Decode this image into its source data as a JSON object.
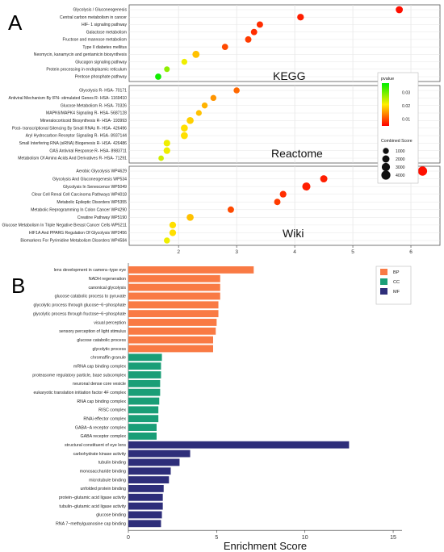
{
  "panels": {
    "a": "A",
    "b": "B"
  },
  "chart_data": [
    {
      "type": "scatter",
      "xlim": [
        1.15,
        6.5
      ],
      "xticks": [
        2,
        3,
        4,
        5,
        6
      ],
      "facets": [
        {
          "name": "KEGG",
          "terms": [
            {
              "label": "Glycolysis / Gluconeogenesis",
              "x": 5.8,
              "p": 0.006,
              "score": 1900
            },
            {
              "label": "Central carbon metabolism in cancer",
              "x": 4.1,
              "p": 0.007,
              "score": 1500
            },
            {
              "label": "HIF- 1 signaling pathway",
              "x": 3.4,
              "p": 0.008,
              "score": 1300
            },
            {
              "label": "Galactose metabolism",
              "x": 3.3,
              "p": 0.008,
              "score": 1300
            },
            {
              "label": "Fructose and mannose metabolism",
              "x": 3.2,
              "p": 0.009,
              "score": 1300
            },
            {
              "label": "Type II diabetes mellitus",
              "x": 2.8,
              "p": 0.01,
              "score": 1200
            },
            {
              "label": "Neomycin, kanamycin and gentamicin biosynthesis",
              "x": 2.3,
              "p": 0.018,
              "score": 1900
            },
            {
              "label": "Glucagon signaling pathway",
              "x": 2.1,
              "p": 0.022,
              "score": 1000
            },
            {
              "label": "Protein processing in endoplasmic reticulum",
              "x": 1.8,
              "p": 0.028,
              "score": 800
            },
            {
              "label": "Pentose phosphate pathway",
              "x": 1.65,
              "p": 0.036,
              "score": 1200
            }
          ]
        },
        {
          "name": "Reactome",
          "terms": [
            {
              "label": "Glycolysis R- HSA- 70171",
              "x": 3.0,
              "p": 0.012,
              "score": 1100
            },
            {
              "label": "Antiviral Mechanism By IFN- stimulated Genes R- HSA- 1169410",
              "x": 2.6,
              "p": 0.015,
              "score": 1000
            },
            {
              "label": "Glucose Metabolism R- HSA- 70326",
              "x": 2.45,
              "p": 0.017,
              "score": 1000
            },
            {
              "label": "MAPK6/MAPK4 Signaling R- HSA- 5687128",
              "x": 2.35,
              "p": 0.018,
              "score": 900
            },
            {
              "label": "Mineralocorticoid Biosynthesis R- HSA- 193993",
              "x": 2.2,
              "p": 0.019,
              "score": 1800
            },
            {
              "label": "Post- transcriptional Silencing By Small RNAs R- HSA- 426496",
              "x": 2.1,
              "p": 0.02,
              "score": 1800
            },
            {
              "label": "Aryl Hydrocarbon Receptor Signaling R- HSA- 8937144",
              "x": 2.1,
              "p": 0.02,
              "score": 1800
            },
            {
              "label": "Small Interfering RNA (siRNA) Biogenesis R- HSA- 426486",
              "x": 1.8,
              "p": 0.022,
              "score": 1500
            },
            {
              "label": "OAS Antiviral Response R- HSA- 8983711",
              "x": 1.8,
              "p": 0.022,
              "score": 1500
            },
            {
              "label": "Metabolism Of Amino Acids And Derivatives R- HSA- 71291",
              "x": 1.7,
              "p": 0.024,
              "score": 700
            }
          ]
        },
        {
          "name": "Wiki",
          "terms": [
            {
              "label": "Aerobic Glycolysis WP4629",
              "x": 6.2,
              "p": 0.006,
              "score": 4200
            },
            {
              "label": "Glycolysis And Gluconeogenesis WP534",
              "x": 4.5,
              "p": 0.007,
              "score": 2000
            },
            {
              "label": "Glycolysis In Senescence WP5049",
              "x": 4.2,
              "p": 0.007,
              "score": 2900
            },
            {
              "label": "Clear Cell Renal Cell Carcinoma Pathways WP4018",
              "x": 3.8,
              "p": 0.008,
              "score": 1500
            },
            {
              "label": "Metabolic Epileptic Disorders WP5355",
              "x": 3.7,
              "p": 0.009,
              "score": 1300
            },
            {
              "label": "Metabolic Reprogramming In Colon Cancer WP4290",
              "x": 2.9,
              "p": 0.01,
              "score": 1300
            },
            {
              "label": "Creatine Pathway WP5190",
              "x": 2.2,
              "p": 0.018,
              "score": 1800
            },
            {
              "label": "Glucose Metabolism In Triple Negative Breast Cancer Cells WP5211",
              "x": 1.9,
              "p": 0.02,
              "score": 1500
            },
            {
              "label": "HIF1A And PPARG Regulation Of Glycolysis WP2456",
              "x": 1.9,
              "p": 0.02,
              "score": 1500
            },
            {
              "label": "Biomarkers For Pyrimidine Metabolism Disorders WP4584",
              "x": 1.8,
              "p": 0.022,
              "score": 1100
            }
          ]
        }
      ],
      "legend": {
        "pvalue_title": "pvalue",
        "pvalue_ticks": [
          0.03,
          0.02,
          0.01
        ],
        "pvalue_colors": [
          "#00ee00",
          "#ffee00",
          "#ff0000"
        ],
        "pvalue_range": [
          0.005,
          0.037
        ],
        "size_title": "Combined Score",
        "size_values": [
          1000,
          2000,
          3000,
          4000
        ],
        "placement": "right"
      }
    },
    {
      "type": "bar",
      "orientation": "horizontal",
      "xlabel": "Enrichment Score",
      "xlim": [
        0,
        15.5
      ],
      "xticks": [
        0,
        5,
        10,
        15
      ],
      "groups": [
        {
          "name": "BP",
          "color": "#f97a44",
          "terms": [
            {
              "label": "lens development in camera−type eye",
              "value": 7.1
            },
            {
              "label": "NADH regeneration",
              "value": 5.2
            },
            {
              "label": "canonical glycolysis",
              "value": 5.2
            },
            {
              "label": "glucose catabolic process to pyruvate",
              "value": 5.2
            },
            {
              "label": "glycolytic process through glucose−6−phosphate",
              "value": 5.1
            },
            {
              "label": "glycolytic process through fructose−6−phosphate",
              "value": 5.1
            },
            {
              "label": "visual perception",
              "value": 5.0
            },
            {
              "label": "sensory perception of light stimulus",
              "value": 4.95
            },
            {
              "label": "glucose catabolic process",
              "value": 4.8
            },
            {
              "label": "glycolytic process",
              "value": 4.8
            }
          ]
        },
        {
          "name": "CC",
          "color": "#1a9e77",
          "terms": [
            {
              "label": "chromaffin granule",
              "value": 1.9
            },
            {
              "label": "mRNA cap binding complex",
              "value": 1.85
            },
            {
              "label": "proteasome regulatory particle, base subcomplex",
              "value": 1.85
            },
            {
              "label": "neuronal dense core vesicle",
              "value": 1.8
            },
            {
              "label": "eukaryotic translation initiation factor 4F complex",
              "value": 1.8
            },
            {
              "label": "RNA cap binding complex",
              "value": 1.75
            },
            {
              "label": "RISC complex",
              "value": 1.7
            },
            {
              "label": "RNAi effector complex",
              "value": 1.7
            },
            {
              "label": "GABA−A receptor complex",
              "value": 1.6
            },
            {
              "label": "GABA receptor complex",
              "value": 1.6
            }
          ]
        },
        {
          "name": "MF",
          "color": "#2e2e7a",
          "terms": [
            {
              "label": "structural constituent of eye lens",
              "value": 12.5
            },
            {
              "label": "carbohydrate kinase activity",
              "value": 3.5
            },
            {
              "label": "tubulin binding",
              "value": 2.9
            },
            {
              "label": "monosaccharide binding",
              "value": 2.4
            },
            {
              "label": "microtubule binding",
              "value": 2.3
            },
            {
              "label": "unfolded protein binding",
              "value": 2.0
            },
            {
              "label": "protein−glutamic acid ligase activity",
              "value": 1.95
            },
            {
              "label": "tubulin−glutamic acid ligase activity",
              "value": 1.95
            },
            {
              "label": "glucose binding",
              "value": 1.9
            },
            {
              "label": "RNA 7−methylguanosine cap binding",
              "value": 1.85
            }
          ]
        }
      ],
      "legend": {
        "placement": "top-right"
      }
    }
  ]
}
